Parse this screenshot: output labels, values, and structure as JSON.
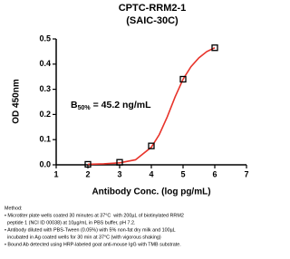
{
  "chart_data": {
    "type": "scatter",
    "title": "CPTC-RRM2-1",
    "subtitle": "(SAIC-30C)",
    "x_label": "Antibody Conc. (log pg/mL)",
    "y_label": "OD 450nm",
    "annotation": {
      "base": "B",
      "subscript": "50%",
      "text": "= 45.2 ng/mL"
    },
    "x": [
      2,
      3,
      4,
      5,
      6
    ],
    "values": [
      0.002,
      0.01,
      0.075,
      0.34,
      0.465
    ],
    "color": "#000000",
    "fit": {
      "color": "#e8332a",
      "x": [
        2,
        2.5,
        3,
        3.5,
        4,
        4.25,
        4.5,
        4.75,
        5,
        5.25,
        5.5,
        5.75,
        6
      ],
      "values": [
        0.002,
        0.004,
        0.008,
        0.02,
        0.07,
        0.12,
        0.19,
        0.27,
        0.34,
        0.39,
        0.425,
        0.45,
        0.465
      ]
    },
    "xlim": [
      1,
      7
    ],
    "ylim": [
      0,
      0.5
    ],
    "xticks": [
      1,
      2,
      3,
      4,
      5,
      6,
      7
    ],
    "yticks": [
      {
        "value": 0,
        "label": "0.0"
      },
      0.1,
      0.2,
      0.3,
      0.4,
      0.5
    ]
  },
  "method": {
    "heading": "Method:",
    "lines": [
      "• Microtiter plate wells coated 30 minutes at 37°C  with 200µL of biotinylated RRM2",
      "  peptide 1 (NCI ID 00038) at 10µg/mL in PBS buffer, pH 7.2.",
      "• Antibody diluted with PBS-Tween (0.05%) with 5% non-fat dry milk and 100µL",
      "  incubated in Ag coated wells for 30 min at 37°C (with vigorous shaking)",
      "• Bound Ab detected using HRP-labeled goat anti-mouse IgG with TMB substrate."
    ]
  }
}
